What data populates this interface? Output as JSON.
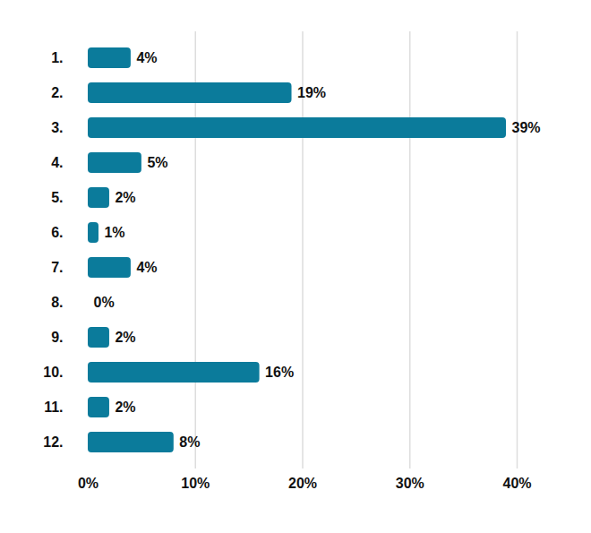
{
  "chart_data": {
    "type": "bar",
    "orientation": "horizontal",
    "categories": [
      "1.",
      "2.",
      "3.",
      "4.",
      "5.",
      "6.",
      "7.",
      "8.",
      "9.",
      "10.",
      "11.",
      "12."
    ],
    "values": [
      4,
      19,
      39,
      5,
      2,
      1,
      4,
      0,
      2,
      16,
      2,
      8
    ],
    "value_labels": [
      "4%",
      "19%",
      "39%",
      "5%",
      "2%",
      "1%",
      "4%",
      "0%",
      "2%",
      "16%",
      "2%",
      "8%"
    ],
    "color": "#0b7b9b",
    "xlim": [
      0,
      40
    ],
    "xticks": [
      {
        "value": 0,
        "label": "0%"
      },
      {
        "value": 10,
        "label": "10%"
      },
      {
        "value": 20,
        "label": "20%"
      },
      {
        "value": 30,
        "label": "30%"
      },
      {
        "value": 40,
        "label": "40%"
      }
    ],
    "grid": true,
    "data_labels": true
  }
}
